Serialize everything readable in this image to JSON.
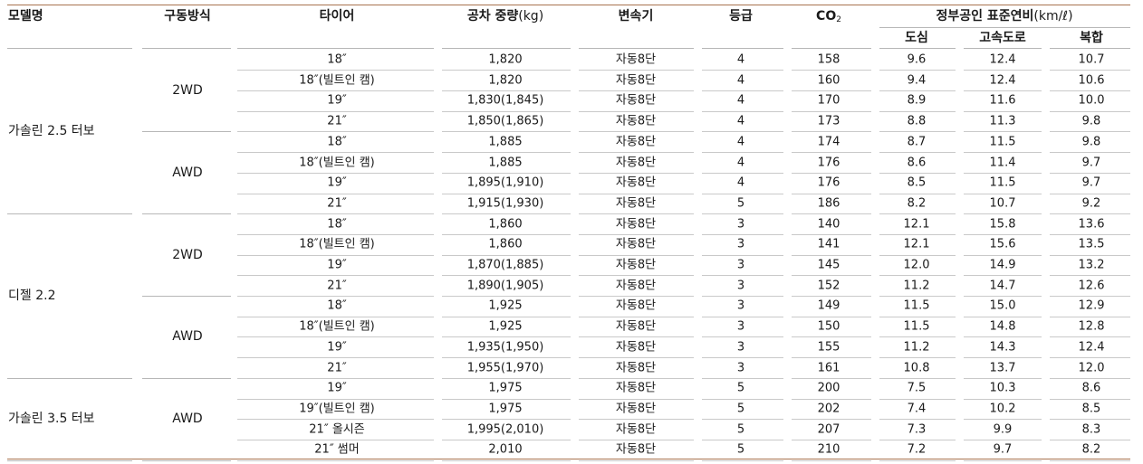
{
  "headers": {
    "model": "모델명",
    "drive": "구동방식",
    "tire": "타이어",
    "weight": "공차 중량",
    "weight_unit": "(kg)",
    "transmission": "변속기",
    "grade": "등급",
    "co2_main": "CO",
    "co2_sub": "2",
    "fuel_economy": "정부공인 표준연비",
    "fuel_economy_unit": "(km/ℓ)",
    "city": "도심",
    "highway": "고속도로",
    "combined": "복합"
  },
  "groups": [
    {
      "model": "가솔린 2.5 터보",
      "drives": [
        {
          "drive": "2WD",
          "rows": [
            {
              "tire": "18″",
              "weight": "1,820",
              "trans": "자동8단",
              "grade": "4",
              "co2": "158",
              "city": "9.6",
              "highway": "12.4",
              "combined": "10.7"
            },
            {
              "tire": "18″(빌트인 캠)",
              "weight": "1,820",
              "trans": "자동8단",
              "grade": "4",
              "co2": "160",
              "city": "9.4",
              "highway": "12.4",
              "combined": "10.6"
            },
            {
              "tire": "19″",
              "weight": "1,830(1,845)",
              "trans": "자동8단",
              "grade": "4",
              "co2": "170",
              "city": "8.9",
              "highway": "11.6",
              "combined": "10.0"
            },
            {
              "tire": "21″",
              "weight": "1,850(1,865)",
              "trans": "자동8단",
              "grade": "4",
              "co2": "173",
              "city": "8.8",
              "highway": "11.3",
              "combined": "9.8"
            }
          ]
        },
        {
          "drive": "AWD",
          "rows": [
            {
              "tire": "18″",
              "weight": "1,885",
              "trans": "자동8단",
              "grade": "4",
              "co2": "174",
              "city": "8.7",
              "highway": "11.5",
              "combined": "9.8"
            },
            {
              "tire": "18″(빌트인 캠)",
              "weight": "1,885",
              "trans": "자동8단",
              "grade": "4",
              "co2": "176",
              "city": "8.6",
              "highway": "11.4",
              "combined": "9.7"
            },
            {
              "tire": "19″",
              "weight": "1,895(1,910)",
              "trans": "자동8단",
              "grade": "4",
              "co2": "176",
              "city": "8.5",
              "highway": "11.5",
              "combined": "9.7"
            },
            {
              "tire": "21″",
              "weight": "1,915(1,930)",
              "trans": "자동8단",
              "grade": "5",
              "co2": "186",
              "city": "8.2",
              "highway": "10.7",
              "combined": "9.2"
            }
          ]
        }
      ]
    },
    {
      "model": "디젤 2.2",
      "drives": [
        {
          "drive": "2WD",
          "rows": [
            {
              "tire": "18″",
              "weight": "1,860",
              "trans": "자동8단",
              "grade": "3",
              "co2": "140",
              "city": "12.1",
              "highway": "15.8",
              "combined": "13.6"
            },
            {
              "tire": "18″(빌트인 캠)",
              "weight": "1,860",
              "trans": "자동8단",
              "grade": "3",
              "co2": "141",
              "city": "12.1",
              "highway": "15.6",
              "combined": "13.5"
            },
            {
              "tire": "19″",
              "weight": "1,870(1,885)",
              "trans": "자동8단",
              "grade": "3",
              "co2": "145",
              "city": "12.0",
              "highway": "14.9",
              "combined": "13.2"
            },
            {
              "tire": "21″",
              "weight": "1,890(1,905)",
              "trans": "자동8단",
              "grade": "3",
              "co2": "152",
              "city": "11.2",
              "highway": "14.7",
              "combined": "12.6"
            }
          ]
        },
        {
          "drive": "AWD",
          "rows": [
            {
              "tire": "18″",
              "weight": "1,925",
              "trans": "자동8단",
              "grade": "3",
              "co2": "149",
              "city": "11.5",
              "highway": "15.0",
              "combined": "12.9"
            },
            {
              "tire": "18″(빌트인 캠)",
              "weight": "1,925",
              "trans": "자동8단",
              "grade": "3",
              "co2": "150",
              "city": "11.5",
              "highway": "14.8",
              "combined": "12.8"
            },
            {
              "tire": "19″",
              "weight": "1,935(1,950)",
              "trans": "자동8단",
              "grade": "3",
              "co2": "155",
              "city": "11.2",
              "highway": "14.3",
              "combined": "12.4"
            },
            {
              "tire": "21″",
              "weight": "1,955(1,970)",
              "trans": "자동8단",
              "grade": "3",
              "co2": "161",
              "city": "10.8",
              "highway": "13.7",
              "combined": "12.0"
            }
          ]
        }
      ]
    },
    {
      "model": "가솔린 3.5 터보",
      "drives": [
        {
          "drive": "AWD",
          "rows": [
            {
              "tire": "19″",
              "weight": "1,975",
              "trans": "자동8단",
              "grade": "5",
              "co2": "200",
              "city": "7.5",
              "highway": "10.3",
              "combined": "8.6"
            },
            {
              "tire": "19″(빌트인 캠)",
              "weight": "1,975",
              "trans": "자동8단",
              "grade": "5",
              "co2": "202",
              "city": "7.4",
              "highway": "10.2",
              "combined": "8.5"
            },
            {
              "tire": "21″ 올시즌",
              "weight": "1,995(2,010)",
              "trans": "자동8단",
              "grade": "5",
              "co2": "207",
              "city": "7.3",
              "highway": "9.9",
              "combined": "8.3"
            },
            {
              "tire": "21″ 썸머",
              "weight": "2,010",
              "trans": "자동8단",
              "grade": "5",
              "co2": "210",
              "city": "7.2",
              "highway": "9.7",
              "combined": "8.2"
            }
          ]
        }
      ]
    }
  ]
}
